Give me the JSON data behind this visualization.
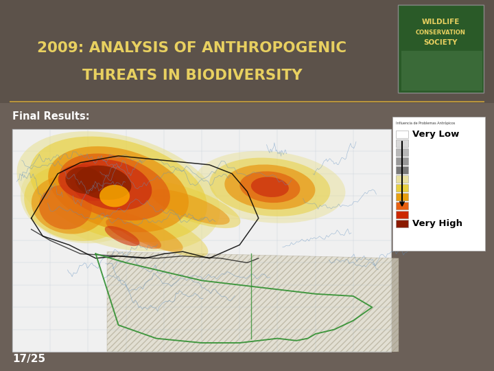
{
  "title_line1": "2009: ANALYSIS OF ANTHROPOGENIC",
  "title_line2": "THREATS IN BIODIVERSITY",
  "title_color": "#e8d060",
  "subtitle": "Final Results:",
  "subtitle_color": "#ffffff",
  "page_number": "17/25",
  "page_color": "#ffffff",
  "background_color": "#6b6058",
  "header_bg": "#5c524a",
  "separator_color": "#b8943c",
  "legend_colors": [
    "#ffffff",
    "#d8d8d8",
    "#b8b8b8",
    "#989898",
    "#787878",
    "#e8e0a0",
    "#e8d040",
    "#e8a010",
    "#e86010",
    "#cc2800",
    "#8b1a00"
  ],
  "legend_label_top": "Very Low",
  "legend_label_bottom": "Very High",
  "wcs_green": "#2a5a28",
  "wcs_text_color": "#e8d060",
  "figsize": [
    7.2,
    5.4
  ],
  "dpi": 100
}
